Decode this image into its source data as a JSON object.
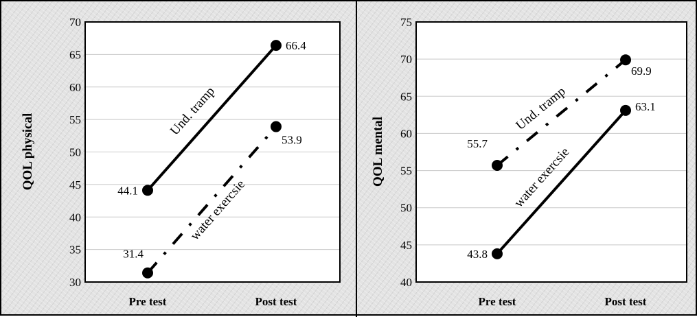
{
  "chart_data": [
    {
      "type": "line",
      "title": "",
      "xlabel": "",
      "ylabel": "QOL physical",
      "categories": [
        "Pre test",
        "Post test"
      ],
      "ylim": [
        30,
        70
      ],
      "ytick_step": 5,
      "yticks": [
        "30",
        "35",
        "40",
        "45",
        "50",
        "55",
        "60",
        "65",
        "70"
      ],
      "grid": true,
      "series": [
        {
          "name": "Und. tramp",
          "values": [
            44.1,
            66.4
          ],
          "value_labels": [
            "44.1",
            "66.4"
          ],
          "style": "solid",
          "color": "#000000"
        },
        {
          "name": "water exercsie",
          "values": [
            31.4,
            53.9
          ],
          "value_labels": [
            "31.4",
            "53.9"
          ],
          "style": "dashdot",
          "color": "#000000"
        }
      ]
    },
    {
      "type": "line",
      "title": "",
      "xlabel": "",
      "ylabel": "QOL mental",
      "categories": [
        "Pre test",
        "Post test"
      ],
      "ylim": [
        40,
        75
      ],
      "ytick_step": 5,
      "yticks": [
        "40",
        "45",
        "50",
        "55",
        "60",
        "65",
        "70",
        "75"
      ],
      "grid": true,
      "series": [
        {
          "name": "Und. tramp",
          "values": [
            55.7,
            69.9
          ],
          "value_labels": [
            "55.7",
            "69.9"
          ],
          "style": "dashdot",
          "color": "#000000"
        },
        {
          "name": "water exercsie",
          "values": [
            43.8,
            63.1
          ],
          "value_labels": [
            "43.8",
            "63.1"
          ],
          "style": "solid",
          "color": "#000000"
        }
      ]
    }
  ]
}
